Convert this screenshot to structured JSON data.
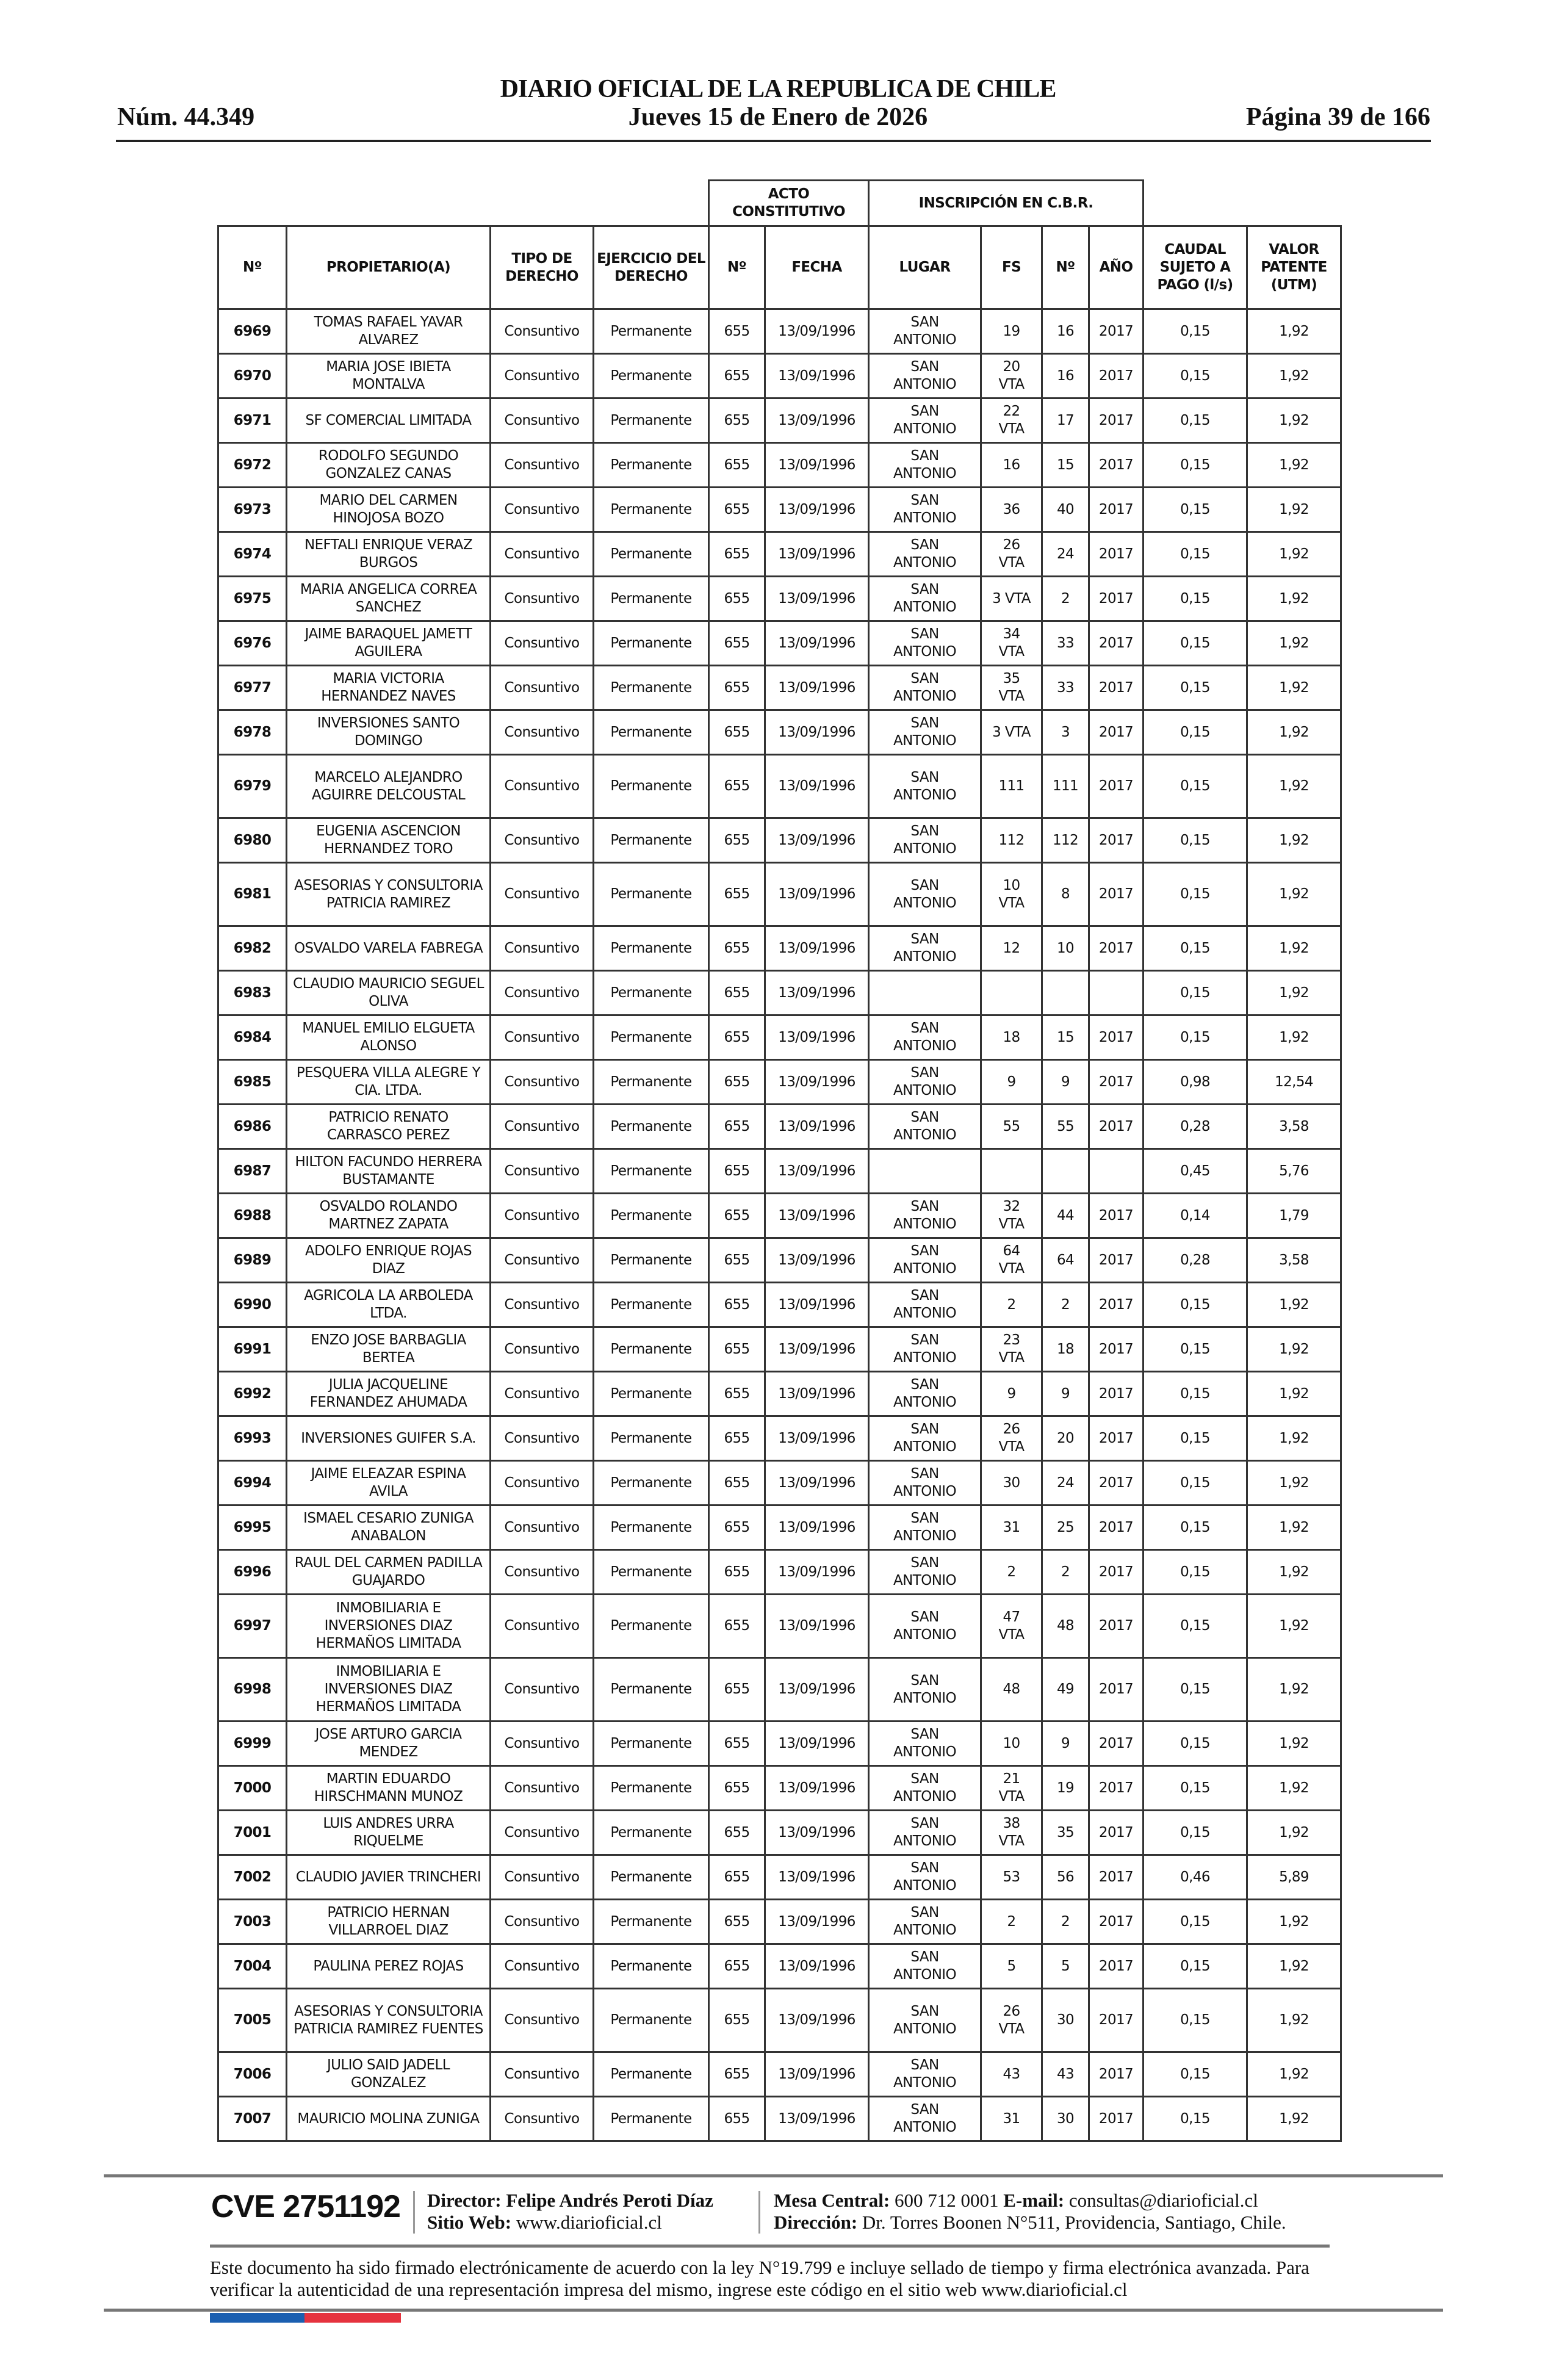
{
  "header": {
    "title": "DIARIO OFICIAL DE LA REPUBLICA DE CHILE",
    "date": "Jueves 15 de Enero de 2026",
    "number": "Núm. 44.349",
    "page": "Página 39 de 166"
  },
  "table": {
    "group_headers": {
      "acto": "ACTO CONSTITUTIVO",
      "inscripcion": "INSCRIPCIÓN EN C.B.R."
    },
    "columns": [
      "Nº",
      "PROPIETARIO(A)",
      "TIPO DE DERECHO",
      "EJERCICIO DEL DERECHO",
      "Nº",
      "FECHA",
      "LUGAR",
      "FS",
      "Nº",
      "AÑO",
      "CAUDAL SUJETO A PAGO (l/s)",
      "VALOR PATENTE (UTM)"
    ],
    "rows": [
      [
        "6969",
        "TOMAS RAFAEL YAVAR ALVAREZ",
        "Consuntivo",
        "Permanente",
        "655",
        "13/09/1996",
        "SAN ANTONIO",
        "19",
        "16",
        "2017",
        "0,15",
        "1,92"
      ],
      [
        "6970",
        "MARIA JOSE IBIETA MONTALVA",
        "Consuntivo",
        "Permanente",
        "655",
        "13/09/1996",
        "SAN ANTONIO",
        "20 VTA",
        "16",
        "2017",
        "0,15",
        "1,92"
      ],
      [
        "6971",
        "SF COMERCIAL LIMITADA",
        "Consuntivo",
        "Permanente",
        "655",
        "13/09/1996",
        "SAN ANTONIO",
        "22 VTA",
        "17",
        "2017",
        "0,15",
        "1,92"
      ],
      [
        "6972",
        "RODOLFO SEGUNDO GONZALEZ CANAS",
        "Consuntivo",
        "Permanente",
        "655",
        "13/09/1996",
        "SAN ANTONIO",
        "16",
        "15",
        "2017",
        "0,15",
        "1,92"
      ],
      [
        "6973",
        "MARIO DEL CARMEN HINOJOSA BOZO",
        "Consuntivo",
        "Permanente",
        "655",
        "13/09/1996",
        "SAN ANTONIO",
        "36",
        "40",
        "2017",
        "0,15",
        "1,92"
      ],
      [
        "6974",
        "NEFTALI ENRIQUE VERAZ BURGOS",
        "Consuntivo",
        "Permanente",
        "655",
        "13/09/1996",
        "SAN ANTONIO",
        "26 VTA",
        "24",
        "2017",
        "0,15",
        "1,92"
      ],
      [
        "6975",
        "MARIA ANGELICA CORREA SANCHEZ",
        "Consuntivo",
        "Permanente",
        "655",
        "13/09/1996",
        "SAN ANTONIO",
        "3 VTA",
        "2",
        "2017",
        "0,15",
        "1,92"
      ],
      [
        "6976",
        "JAIME BARAQUEL JAMETT AGUILERA",
        "Consuntivo",
        "Permanente",
        "655",
        "13/09/1996",
        "SAN ANTONIO",
        "34 VTA",
        "33",
        "2017",
        "0,15",
        "1,92"
      ],
      [
        "6977",
        "MARIA VICTORIA HERNANDEZ NAVES",
        "Consuntivo",
        "Permanente",
        "655",
        "13/09/1996",
        "SAN ANTONIO",
        "35 VTA",
        "33",
        "2017",
        "0,15",
        "1,92"
      ],
      [
        "6978",
        "INVERSIONES SANTO DOMINGO",
        "Consuntivo",
        "Permanente",
        "655",
        "13/09/1996",
        "SAN ANTONIO",
        "3 VTA",
        "3",
        "2017",
        "0,15",
        "1,92"
      ],
      [
        "6979",
        "MARCELO ALEJANDRO AGUIRRE DELCOUSTAL",
        "Consuntivo",
        "Permanente",
        "655",
        "13/09/1996",
        "SAN ANTONIO",
        "111",
        "111",
        "2017",
        "0,15",
        "1,92"
      ],
      [
        "6980",
        "EUGENIA ASCENCION HERNANDEZ TORO",
        "Consuntivo",
        "Permanente",
        "655",
        "13/09/1996",
        "SAN ANTONIO",
        "112",
        "112",
        "2017",
        "0,15",
        "1,92"
      ],
      [
        "6981",
        "ASESORIAS Y CONSULTORIA PATRICIA RAMIREZ",
        "Consuntivo",
        "Permanente",
        "655",
        "13/09/1996",
        "SAN ANTONIO",
        "10 VTA",
        "8",
        "2017",
        "0,15",
        "1,92"
      ],
      [
        "6982",
        "OSVALDO VARELA FABREGA",
        "Consuntivo",
        "Permanente",
        "655",
        "13/09/1996",
        "SAN ANTONIO",
        "12",
        "10",
        "2017",
        "0,15",
        "1,92"
      ],
      [
        "6983",
        "CLAUDIO MAURICIO SEGUEL OLIVA",
        "Consuntivo",
        "Permanente",
        "655",
        "13/09/1996",
        "",
        "",
        "",
        "",
        "0,15",
        "1,92"
      ],
      [
        "6984",
        "MANUEL EMILIO ELGUETA ALONSO",
        "Consuntivo",
        "Permanente",
        "655",
        "13/09/1996",
        "SAN ANTONIO",
        "18",
        "15",
        "2017",
        "0,15",
        "1,92"
      ],
      [
        "6985",
        "PESQUERA VILLA ALEGRE Y CIA. LTDA.",
        "Consuntivo",
        "Permanente",
        "655",
        "13/09/1996",
        "SAN ANTONIO",
        "9",
        "9",
        "2017",
        "0,98",
        "12,54"
      ],
      [
        "6986",
        "PATRICIO RENATO CARRASCO PEREZ",
        "Consuntivo",
        "Permanente",
        "655",
        "13/09/1996",
        "SAN ANTONIO",
        "55",
        "55",
        "2017",
        "0,28",
        "3,58"
      ],
      [
        "6987",
        "HILTON FACUNDO HERRERA BUSTAMANTE",
        "Consuntivo",
        "Permanente",
        "655",
        "13/09/1996",
        "",
        "",
        "",
        "",
        "0,45",
        "5,76"
      ],
      [
        "6988",
        "OSVALDO ROLANDO MARTNEZ ZAPATA",
        "Consuntivo",
        "Permanente",
        "655",
        "13/09/1996",
        "SAN ANTONIO",
        "32 VTA",
        "44",
        "2017",
        "0,14",
        "1,79"
      ],
      [
        "6989",
        "ADOLFO ENRIQUE ROJAS DIAZ",
        "Consuntivo",
        "Permanente",
        "655",
        "13/09/1996",
        "SAN ANTONIO",
        "64 VTA",
        "64",
        "2017",
        "0,28",
        "3,58"
      ],
      [
        "6990",
        "AGRICOLA LA ARBOLEDA LTDA.",
        "Consuntivo",
        "Permanente",
        "655",
        "13/09/1996",
        "SAN ANTONIO",
        "2",
        "2",
        "2017",
        "0,15",
        "1,92"
      ],
      [
        "6991",
        "ENZO JOSE BARBAGLIA BERTEA",
        "Consuntivo",
        "Permanente",
        "655",
        "13/09/1996",
        "SAN ANTONIO",
        "23 VTA",
        "18",
        "2017",
        "0,15",
        "1,92"
      ],
      [
        "6992",
        "JULIA JACQUELINE FERNANDEZ AHUMADA",
        "Consuntivo",
        "Permanente",
        "655",
        "13/09/1996",
        "SAN ANTONIO",
        "9",
        "9",
        "2017",
        "0,15",
        "1,92"
      ],
      [
        "6993",
        "INVERSIONES GUIFER S.A.",
        "Consuntivo",
        "Permanente",
        "655",
        "13/09/1996",
        "SAN ANTONIO",
        "26 VTA",
        "20",
        "2017",
        "0,15",
        "1,92"
      ],
      [
        "6994",
        "JAIME ELEAZAR ESPINA AVILA",
        "Consuntivo",
        "Permanente",
        "655",
        "13/09/1996",
        "SAN ANTONIO",
        "30",
        "24",
        "2017",
        "0,15",
        "1,92"
      ],
      [
        "6995",
        "ISMAEL CESARIO ZUNIGA ANABALON",
        "Consuntivo",
        "Permanente",
        "655",
        "13/09/1996",
        "SAN ANTONIO",
        "31",
        "25",
        "2017",
        "0,15",
        "1,92"
      ],
      [
        "6996",
        "RAUL DEL CARMEN PADILLA GUAJARDO",
        "Consuntivo",
        "Permanente",
        "655",
        "13/09/1996",
        "SAN ANTONIO",
        "2",
        "2",
        "2017",
        "0,15",
        "1,92"
      ],
      [
        "6997",
        "INMOBILIARIA E INVERSIONES DIAZ HERMAÑOS LIMITADA",
        "Consuntivo",
        "Permanente",
        "655",
        "13/09/1996",
        "SAN ANTONIO",
        "47 VTA",
        "48",
        "2017",
        "0,15",
        "1,92"
      ],
      [
        "6998",
        "INMOBILIARIA E INVERSIONES DIAZ HERMAÑOS LIMITADA",
        "Consuntivo",
        "Permanente",
        "655",
        "13/09/1996",
        "SAN ANTONIO",
        "48",
        "49",
        "2017",
        "0,15",
        "1,92"
      ],
      [
        "6999",
        "JOSE ARTURO GARCIA MENDEZ",
        "Consuntivo",
        "Permanente",
        "655",
        "13/09/1996",
        "SAN ANTONIO",
        "10",
        "9",
        "2017",
        "0,15",
        "1,92"
      ],
      [
        "7000",
        "MARTIN EDUARDO HIRSCHMANN MUNOZ",
        "Consuntivo",
        "Permanente",
        "655",
        "13/09/1996",
        "SAN ANTONIO",
        "21 VTA",
        "19",
        "2017",
        "0,15",
        "1,92"
      ],
      [
        "7001",
        "LUIS ANDRES URRA RIQUELME",
        "Consuntivo",
        "Permanente",
        "655",
        "13/09/1996",
        "SAN ANTONIO",
        "38 VTA",
        "35",
        "2017",
        "0,15",
        "1,92"
      ],
      [
        "7002",
        "CLAUDIO JAVIER TRINCHERI",
        "Consuntivo",
        "Permanente",
        "655",
        "13/09/1996",
        "SAN ANTONIO",
        "53",
        "56",
        "2017",
        "0,46",
        "5,89"
      ],
      [
        "7003",
        "PATRICIO HERNAN VILLARROEL DIAZ",
        "Consuntivo",
        "Permanente",
        "655",
        "13/09/1996",
        "SAN ANTONIO",
        "2",
        "2",
        "2017",
        "0,15",
        "1,92"
      ],
      [
        "7004",
        "PAULINA PEREZ ROJAS",
        "Consuntivo",
        "Permanente",
        "655",
        "13/09/1996",
        "SAN ANTONIO",
        "5",
        "5",
        "2017",
        "0,15",
        "1,92"
      ],
      [
        "7005",
        "ASESORIAS Y CONSULTORIA PATRICIA RAMIREZ FUENTES",
        "Consuntivo",
        "Permanente",
        "655",
        "13/09/1996",
        "SAN ANTONIO",
        "26 VTA",
        "30",
        "2017",
        "0,15",
        "1,92"
      ],
      [
        "7006",
        "JULIO SAID JADELL GONZALEZ",
        "Consuntivo",
        "Permanente",
        "655",
        "13/09/1996",
        "SAN ANTONIO",
        "43",
        "43",
        "2017",
        "0,15",
        "1,92"
      ],
      [
        "7007",
        "MAURICIO MOLINA ZUNIGA",
        "Consuntivo",
        "Permanente",
        "655",
        "13/09/1996",
        "SAN ANTONIO",
        "31",
        "30",
        "2017",
        "0,15",
        "1,92"
      ]
    ]
  },
  "footer": {
    "cve": "CVE 2751192",
    "director_label": "Director:",
    "director": "Felipe Andrés Peroti Díaz",
    "web_label": "Sitio Web:",
    "web": "www.diarioficial.cl",
    "phone_label": "Mesa Central:",
    "phone": "600 712 0001",
    "email_label": "E-mail:",
    "email": "consultas@diarioficial.cl",
    "address_label": "Dirección:",
    "address": "Dr. Torres Boonen N°511, Providencia, Santiago, Chile.",
    "legal": "Este documento ha sido firmado electrónicamente de acuerdo con la ley N°19.799 e incluye sellado de tiempo y firma electrónica avanzada. Para verificar la autenticidad de una representación impresa del mismo, ingrese este código en el sitio web www.diarioficial.cl",
    "flag_colors": [
      "#1b5fb0",
      "#e5333f"
    ]
  }
}
